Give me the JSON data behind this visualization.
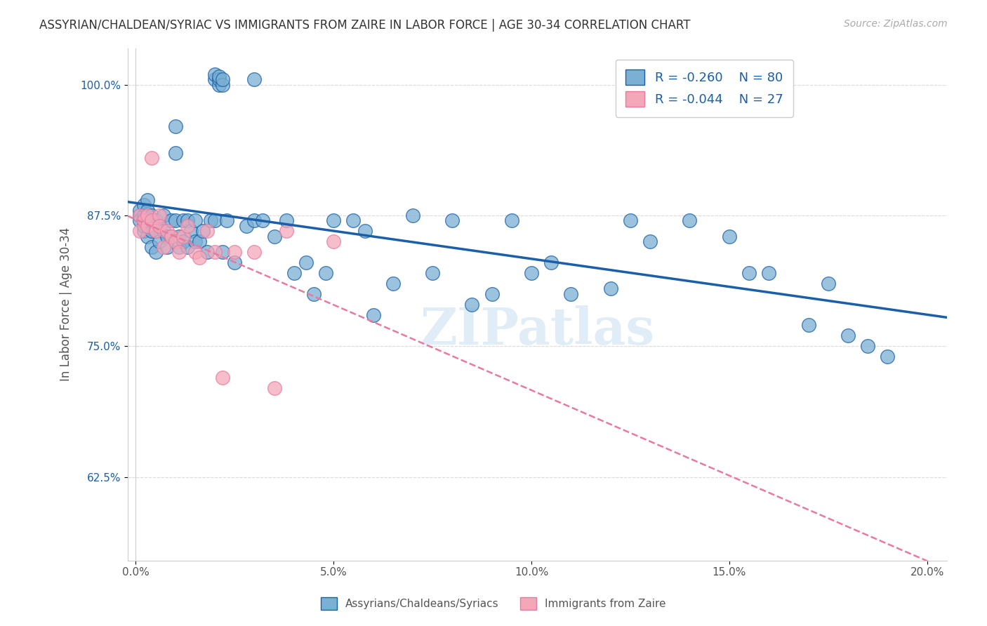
{
  "title": "ASSYRIAN/CHALDEAN/SYRIAC VS IMMIGRANTS FROM ZAIRE IN LABOR FORCE | AGE 30-34 CORRELATION CHART",
  "source_text": "Source: ZipAtlas.com",
  "ylabel": "In Labor Force | Age 30-34",
  "xlabel_ticks": [
    "0.0%",
    "5.0%",
    "10.0%",
    "15.0%",
    "20.0%"
  ],
  "xlabel_vals": [
    0.0,
    0.05,
    0.1,
    0.15,
    0.2
  ],
  "ylabel_ticks": [
    "62.5%",
    "75.0%",
    "87.5%",
    "100.0%"
  ],
  "ylabel_vals": [
    0.625,
    0.75,
    0.875,
    1.0
  ],
  "xlim": [
    -0.002,
    0.205
  ],
  "ylim": [
    0.545,
    1.035
  ],
  "legend_blue_r": "R = -0.260",
  "legend_blue_n": "N = 80",
  "legend_pink_r": "R = -0.044",
  "legend_pink_n": "N = 27",
  "blue_color": "#7bafd4",
  "pink_color": "#f4a7b9",
  "blue_line_color": "#1a5fa8",
  "pink_line_color": "#e87aa0",
  "watermark_text": "ZIPatlas",
  "blue_scatter_x": [
    0.001,
    0.001,
    0.001,
    0.002,
    0.002,
    0.002,
    0.002,
    0.003,
    0.003,
    0.003,
    0.003,
    0.004,
    0.004,
    0.004,
    0.005,
    0.005,
    0.005,
    0.006,
    0.006,
    0.007,
    0.007,
    0.008,
    0.008,
    0.009,
    0.009,
    0.01,
    0.01,
    0.01,
    0.011,
    0.011,
    0.012,
    0.012,
    0.013,
    0.013,
    0.014,
    0.015,
    0.015,
    0.016,
    0.017,
    0.018,
    0.019,
    0.02,
    0.022,
    0.023,
    0.025,
    0.028,
    0.03,
    0.032,
    0.035,
    0.038,
    0.04,
    0.043,
    0.045,
    0.048,
    0.05,
    0.055,
    0.058,
    0.06,
    0.065,
    0.07,
    0.075,
    0.08,
    0.085,
    0.09,
    0.095,
    0.1,
    0.105,
    0.11,
    0.12,
    0.125,
    0.13,
    0.14,
    0.15,
    0.155,
    0.16,
    0.17,
    0.175,
    0.18,
    0.185,
    0.19
  ],
  "blue_scatter_y": [
    0.875,
    0.88,
    0.87,
    0.885,
    0.86,
    0.875,
    0.865,
    0.89,
    0.855,
    0.88,
    0.865,
    0.86,
    0.875,
    0.845,
    0.87,
    0.86,
    0.84,
    0.865,
    0.85,
    0.875,
    0.86,
    0.855,
    0.845,
    0.87,
    0.855,
    0.96,
    0.935,
    0.87,
    0.855,
    0.845,
    0.87,
    0.85,
    0.87,
    0.845,
    0.86,
    0.85,
    0.87,
    0.85,
    0.86,
    0.84,
    0.87,
    0.87,
    0.84,
    0.87,
    0.83,
    0.865,
    0.87,
    0.87,
    0.855,
    0.87,
    0.82,
    0.83,
    0.8,
    0.82,
    0.87,
    0.87,
    0.86,
    0.78,
    0.81,
    0.875,
    0.82,
    0.87,
    0.79,
    0.8,
    0.87,
    0.82,
    0.83,
    0.8,
    0.805,
    0.87,
    0.85,
    0.87,
    0.855,
    0.82,
    0.82,
    0.77,
    0.81,
    0.76,
    0.75,
    0.74
  ],
  "pink_scatter_x": [
    0.001,
    0.001,
    0.002,
    0.003,
    0.003,
    0.004,
    0.004,
    0.005,
    0.006,
    0.006,
    0.007,
    0.008,
    0.009,
    0.01,
    0.011,
    0.012,
    0.013,
    0.015,
    0.016,
    0.018,
    0.02,
    0.022,
    0.025,
    0.03,
    0.035,
    0.038,
    0.05
  ],
  "pink_scatter_y": [
    0.875,
    0.86,
    0.87,
    0.865,
    0.875,
    0.93,
    0.87,
    0.86,
    0.875,
    0.865,
    0.845,
    0.86,
    0.855,
    0.85,
    0.84,
    0.855,
    0.865,
    0.84,
    0.835,
    0.86,
    0.84,
    0.72,
    0.84,
    0.84,
    0.71,
    0.86,
    0.85
  ],
  "grid_color": "#dddddd",
  "background_color": "#ffffff",
  "top_blue_cluster_x": [
    0.02,
    0.02,
    0.021,
    0.021,
    0.021,
    0.022,
    0.022
  ],
  "top_blue_cluster_y": [
    1.005,
    1.01,
    1.0,
    1.005,
    1.008,
    1.0,
    1.005
  ],
  "top_blue_single_x": [
    0.03
  ],
  "top_blue_single_y": [
    1.005
  ]
}
